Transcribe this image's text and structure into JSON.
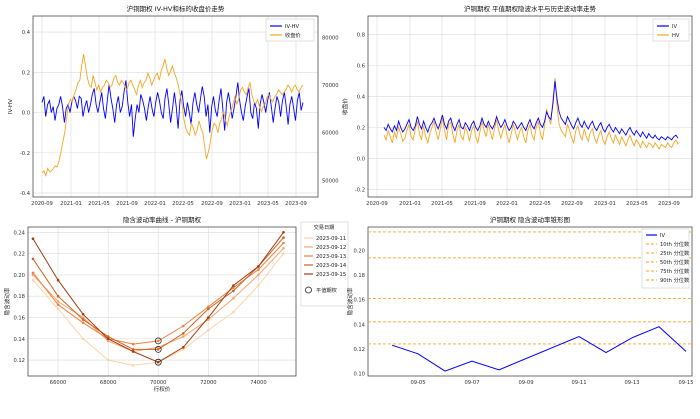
{
  "chart_data": [
    {
      "type": "line",
      "title": "沪铜期权 IV-HV和标的收盘价走势",
      "ylabel": "IV-HV",
      "y2label": "收盘价",
      "x_ticks": [
        "2020-09",
        "2021-01",
        "2021-05",
        "2021-09",
        "2022-01",
        "2022-05",
        "2022-09",
        "2023-01",
        "2023-05",
        "2023-09"
      ],
      "ylim": [
        -0.42,
        0.48
      ],
      "y_ticks": [
        -0.4,
        -0.2,
        0.0,
        0.2,
        0.4
      ],
      "y2lim": [
        46500,
        84500
      ],
      "y2_ticks": [
        50000,
        60000,
        70000,
        80000
      ],
      "series": [
        {
          "name": "IV-HV",
          "color": "#0000ff",
          "axis": "left",
          "values": [
            0.05,
            0.08,
            -0.02,
            0.04,
            0.06,
            0.0,
            0.03,
            -0.04,
            0.02,
            0.04,
            0.08,
            0.03,
            -0.05,
            0.02,
            0.04,
            0.0,
            0.05,
            0.08,
            0.06,
            0.02,
            0.08,
            0.07,
            -0.02,
            0.03,
            0.06,
            0.0,
            0.04,
            0.09,
            0.12,
            0.04,
            0.0,
            0.05,
            0.1,
            0.02,
            -0.03,
            0.06,
            0.14,
            0.07,
            0.02,
            -0.05,
            0.04,
            0.08,
            0.0,
            0.03,
            0.1,
            0.16,
            0.05,
            -0.02,
            0.04,
            -0.12,
            -0.03,
            0.04,
            0.0,
            0.09,
            0.06,
            0.02,
            -0.04,
            0.03,
            0.08,
            0.02,
            -0.02,
            0.05,
            0.1,
            0.06,
            0.0,
            -0.03,
            0.07,
            0.12,
            0.04,
            -0.05,
            0.02,
            0.1,
            0.03,
            -0.08,
            0.06,
            0.11,
            0.03,
            -0.02,
            0.05,
            0.0,
            -0.06,
            0.05,
            0.1,
            0.04,
            0.0,
            0.07,
            0.13,
            0.08,
            -0.02,
            0.04,
            -0.1,
            0.03,
            0.08,
            0.01,
            -0.02,
            0.06,
            0.12,
            0.02,
            -0.09,
            0.05,
            0.1,
            0.04,
            -0.03,
            0.02,
            0.08,
            0.15,
            0.06,
            0.0,
            -0.04,
            0.03,
            0.08,
            0.12,
            0.0,
            -0.03,
            0.05,
            0.02,
            -0.08,
            0.04,
            0.09,
            0.05,
            0.0,
            0.06,
            0.1,
            0.03,
            -0.05,
            0.02,
            0.08,
            0.05,
            -0.02,
            0.06,
            0.1,
            0.03,
            -0.06,
            0.04,
            0.08,
            0.02,
            -0.04,
            0.06,
            0.1,
            0.01,
            0.05
          ]
        },
        {
          "name": "收盘价",
          "color": "#f5a623",
          "axis": "right",
          "values": [
            51500,
            52000,
            51000,
            52500,
            51800,
            52000,
            52500,
            53000,
            52800,
            54000,
            56000,
            58000,
            60000,
            63000,
            66000,
            67000,
            66500,
            68000,
            69000,
            70500,
            71000,
            74000,
            76500,
            74000,
            71500,
            70000,
            69500,
            72000,
            70500,
            69000,
            70000,
            68500,
            69500,
            70000,
            71000,
            70500,
            69500,
            70000,
            71500,
            72000,
            70500,
            70000,
            71000,
            70500,
            69500,
            69000,
            70500,
            71000,
            70000,
            69000,
            68000,
            70000,
            71000,
            69500,
            70500,
            71000,
            72500,
            71500,
            70000,
            71000,
            72000,
            72500,
            71000,
            73000,
            74000,
            75500,
            73500,
            72000,
            73000,
            74000,
            72500,
            71500,
            70000,
            68000,
            66000,
            63000,
            61000,
            60000,
            59500,
            62000,
            61000,
            59500,
            60500,
            62500,
            61000,
            60000,
            57000,
            54500,
            56000,
            58000,
            60500,
            62000,
            61500,
            60000,
            62000,
            63000,
            64500,
            62500,
            61500,
            63500,
            64500,
            66000,
            67500,
            66000,
            67000,
            69000,
            69500,
            68500,
            68000,
            69500,
            70500,
            68000,
            66500,
            66000,
            67000,
            65500,
            64500,
            65500,
            66000,
            67500,
            68000,
            67000,
            66500,
            67500,
            68000,
            69000,
            68500,
            68000,
            68500,
            69000,
            70000,
            69500,
            68500,
            69500,
            70000,
            69000,
            68500,
            69500,
            70000
          ]
        }
      ]
    },
    {
      "type": "line",
      "title": "沪铜期权 平值期权隐波水平与历史波动率走势",
      "x_ticks": [
        "2020-09",
        "2021-01",
        "2021-05",
        "2021-09",
        "2022-01",
        "2022-05",
        "2022-09",
        "2023-01",
        "2023-05",
        "2023-09"
      ],
      "ylim": [
        -0.25,
        0.92
      ],
      "y_ticks": [
        -0.2,
        0.0,
        0.2,
        0.4,
        0.6,
        0.8
      ],
      "series": [
        {
          "name": "IV",
          "color": "#0000ff",
          "values": [
            0.2,
            0.18,
            0.22,
            0.19,
            0.17,
            0.21,
            0.18,
            0.24,
            0.2,
            0.17,
            0.19,
            0.22,
            0.25,
            0.2,
            0.18,
            0.21,
            0.27,
            0.22,
            0.19,
            0.24,
            0.2,
            0.17,
            0.21,
            0.23,
            0.26,
            0.22,
            0.19,
            0.23,
            0.28,
            0.22,
            0.19,
            0.24,
            0.26,
            0.21,
            0.18,
            0.22,
            0.25,
            0.2,
            0.19,
            0.23,
            0.21,
            0.18,
            0.22,
            0.24,
            0.2,
            0.18,
            0.21,
            0.26,
            0.22,
            0.2,
            0.24,
            0.21,
            0.19,
            0.22,
            0.27,
            0.23,
            0.2,
            0.22,
            0.25,
            0.21,
            0.18,
            0.2,
            0.24,
            0.22,
            0.19,
            0.21,
            0.23,
            0.2,
            0.18,
            0.22,
            0.25,
            0.21,
            0.19,
            0.23,
            0.26,
            0.22,
            0.2,
            0.24,
            0.3,
            0.27,
            0.25,
            0.35,
            0.5,
            0.38,
            0.3,
            0.26,
            0.24,
            0.22,
            0.27,
            0.24,
            0.21,
            0.19,
            0.23,
            0.26,
            0.22,
            0.2,
            0.24,
            0.21,
            0.19,
            0.22,
            0.24,
            0.2,
            0.18,
            0.21,
            0.23,
            0.19,
            0.17,
            0.2,
            0.22,
            0.19,
            0.17,
            0.2,
            0.18,
            0.16,
            0.19,
            0.17,
            0.15,
            0.18,
            0.2,
            0.17,
            0.15,
            0.18,
            0.16,
            0.14,
            0.17,
            0.15,
            0.13,
            0.16,
            0.14,
            0.13,
            0.15,
            0.13,
            0.12,
            0.14,
            0.13,
            0.12,
            0.14,
            0.13,
            0.12,
            0.14,
            0.15,
            0.13
          ]
        },
        {
          "name": "HV",
          "color": "#f5a623",
          "values": [
            0.15,
            0.12,
            0.18,
            0.14,
            0.1,
            0.17,
            0.13,
            0.2,
            0.16,
            0.11,
            0.13,
            0.18,
            0.22,
            0.14,
            0.12,
            0.19,
            0.24,
            0.16,
            0.12,
            0.21,
            0.14,
            0.1,
            0.16,
            0.2,
            0.24,
            0.17,
            0.12,
            0.19,
            0.26,
            0.18,
            0.12,
            0.22,
            0.23,
            0.16,
            0.1,
            0.18,
            0.22,
            0.14,
            0.12,
            0.2,
            0.17,
            0.11,
            0.18,
            0.21,
            0.14,
            0.1,
            0.17,
            0.24,
            0.18,
            0.14,
            0.22,
            0.17,
            0.12,
            0.19,
            0.25,
            0.18,
            0.13,
            0.18,
            0.22,
            0.15,
            0.1,
            0.16,
            0.22,
            0.17,
            0.12,
            0.17,
            0.2,
            0.14,
            0.1,
            0.18,
            0.22,
            0.15,
            0.12,
            0.2,
            0.24,
            0.16,
            0.12,
            0.21,
            0.32,
            0.26,
            0.22,
            0.38,
            0.52,
            0.33,
            0.22,
            0.18,
            0.16,
            0.14,
            0.22,
            0.18,
            0.13,
            0.1,
            0.18,
            0.21,
            0.15,
            0.12,
            0.19,
            0.14,
            0.11,
            0.17,
            0.19,
            0.13,
            0.1,
            0.15,
            0.18,
            0.12,
            0.09,
            0.14,
            0.17,
            0.13,
            0.1,
            0.15,
            0.12,
            0.09,
            0.14,
            0.11,
            0.08,
            0.12,
            0.15,
            0.11,
            0.08,
            0.12,
            0.1,
            0.07,
            0.11,
            0.09,
            0.07,
            0.1,
            0.09,
            0.07,
            0.1,
            0.08,
            0.06,
            0.09,
            0.08,
            0.07,
            0.1,
            0.08,
            0.07,
            0.1,
            0.12,
            0.09
          ]
        }
      ]
    },
    {
      "type": "line",
      "title": "隐含波动率曲线 - 沪铜期权",
      "xlabel": "行权价",
      "ylabel": "隐含波动率",
      "x": [
        65000,
        66000,
        67000,
        68000,
        69000,
        70000,
        71000,
        72000,
        73000,
        74000,
        75000
      ],
      "xlim": [
        64800,
        75500
      ],
      "ylim": [
        0.105,
        0.245
      ],
      "x_ticks": [
        66000,
        68000,
        70000,
        72000,
        74000
      ],
      "y_ticks": [
        0.12,
        0.14,
        0.16,
        0.18,
        0.2,
        0.22,
        0.24
      ],
      "legend_title": "交易日期",
      "series": [
        {
          "name": "2023-09-11",
          "color": "#fcd3a8",
          "values": [
            0.195,
            0.168,
            0.14,
            0.12,
            0.115,
            0.118,
            0.13,
            0.148,
            0.165,
            0.19,
            0.22
          ]
        },
        {
          "name": "2023-09-12",
          "color": "#f7a56b",
          "values": [
            0.2,
            0.175,
            0.16,
            0.138,
            0.128,
            0.132,
            0.142,
            0.158,
            0.178,
            0.2,
            0.225
          ]
        },
        {
          "name": "2023-09-13",
          "color": "#f08040",
          "values": [
            0.202,
            0.172,
            0.155,
            0.14,
            0.135,
            0.138,
            0.152,
            0.17,
            0.188,
            0.205,
            0.23
          ]
        },
        {
          "name": "2023-09-14",
          "color": "#d2601e",
          "values": [
            0.215,
            0.18,
            0.158,
            0.142,
            0.13,
            0.13,
            0.145,
            0.168,
            0.185,
            0.208,
            0.235
          ]
        },
        {
          "name": "2023-09-15",
          "color": "#a33c10",
          "values": [
            0.234,
            0.195,
            0.163,
            0.14,
            0.128,
            0.118,
            0.132,
            0.16,
            0.19,
            0.208,
            0.24
          ]
        }
      ],
      "atm_label": "平值期权",
      "atm_points": [
        [
          70000,
          0.138
        ],
        [
          70000,
          0.13
        ],
        [
          70000,
          0.118
        ]
      ]
    },
    {
      "type": "line",
      "title": "沪铜期权 隐含波动率锥形图",
      "ylabel": "隐含波动率",
      "x_ticks": [
        "09-05",
        "09-07",
        "09-09",
        "09-11",
        "09-13",
        "09-15"
      ],
      "ylim": [
        0.098,
        0.219
      ],
      "y_ticks": [
        0.1,
        0.12,
        0.14,
        0.16,
        0.18,
        0.2
      ],
      "series": [
        {
          "name": "IV",
          "color": "#0000ff",
          "x": [
            "09-04",
            "09-05",
            "09-06",
            "09-07",
            "09-08",
            "09-11",
            "09-12",
            "09-13",
            "09-14",
            "09-15"
          ],
          "values": [
            0.123,
            0.116,
            0.102,
            0.11,
            0.103,
            0.13,
            0.117,
            0.129,
            0.138,
            0.118
          ]
        }
      ],
      "percentiles": [
        {
          "name": "10th 分位数",
          "value": 0.124
        },
        {
          "name": "25th 分位数",
          "value": 0.142
        },
        {
          "name": "50th 分位数",
          "value": 0.161
        },
        {
          "name": "75th 分位数",
          "value": 0.194
        },
        {
          "name": "90th 分位数",
          "value": 0.215
        }
      ],
      "percentile_color": "#f5a623"
    }
  ]
}
